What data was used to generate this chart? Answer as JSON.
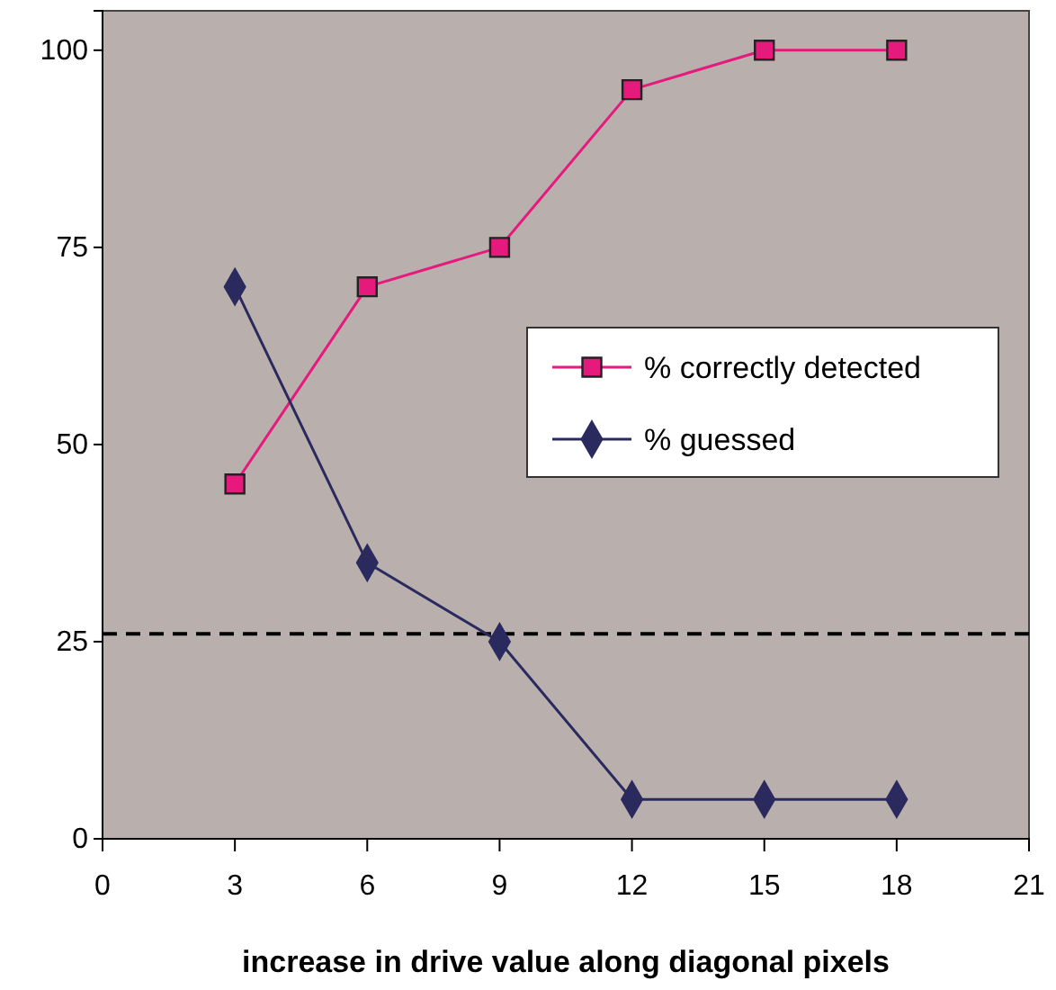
{
  "chart_data": {
    "type": "line",
    "xlabel": "increase in drive value along diagonal pixels",
    "x": [
      3,
      6,
      9,
      12,
      15,
      18
    ],
    "series": [
      {
        "name": "% correctly detected",
        "color": "#e6197d",
        "marker": "square",
        "values": [
          45,
          70,
          75,
          95,
          100,
          100
        ]
      },
      {
        "name": "% guessed",
        "color": "#2b2a5e",
        "marker": "diamond",
        "values": [
          70,
          35,
          25,
          5,
          5,
          5
        ]
      }
    ],
    "xlim": [
      0,
      21
    ],
    "xticks": [
      0,
      3,
      6,
      9,
      12,
      15,
      18,
      21
    ],
    "ylim": [
      0,
      105
    ],
    "yticks": [
      0,
      25,
      50,
      75,
      100
    ],
    "ref_lines": [
      {
        "axis": "y",
        "value": 26,
        "line_style": "dashed",
        "color": "#000000"
      }
    ],
    "grid": false,
    "legend": "right"
  }
}
